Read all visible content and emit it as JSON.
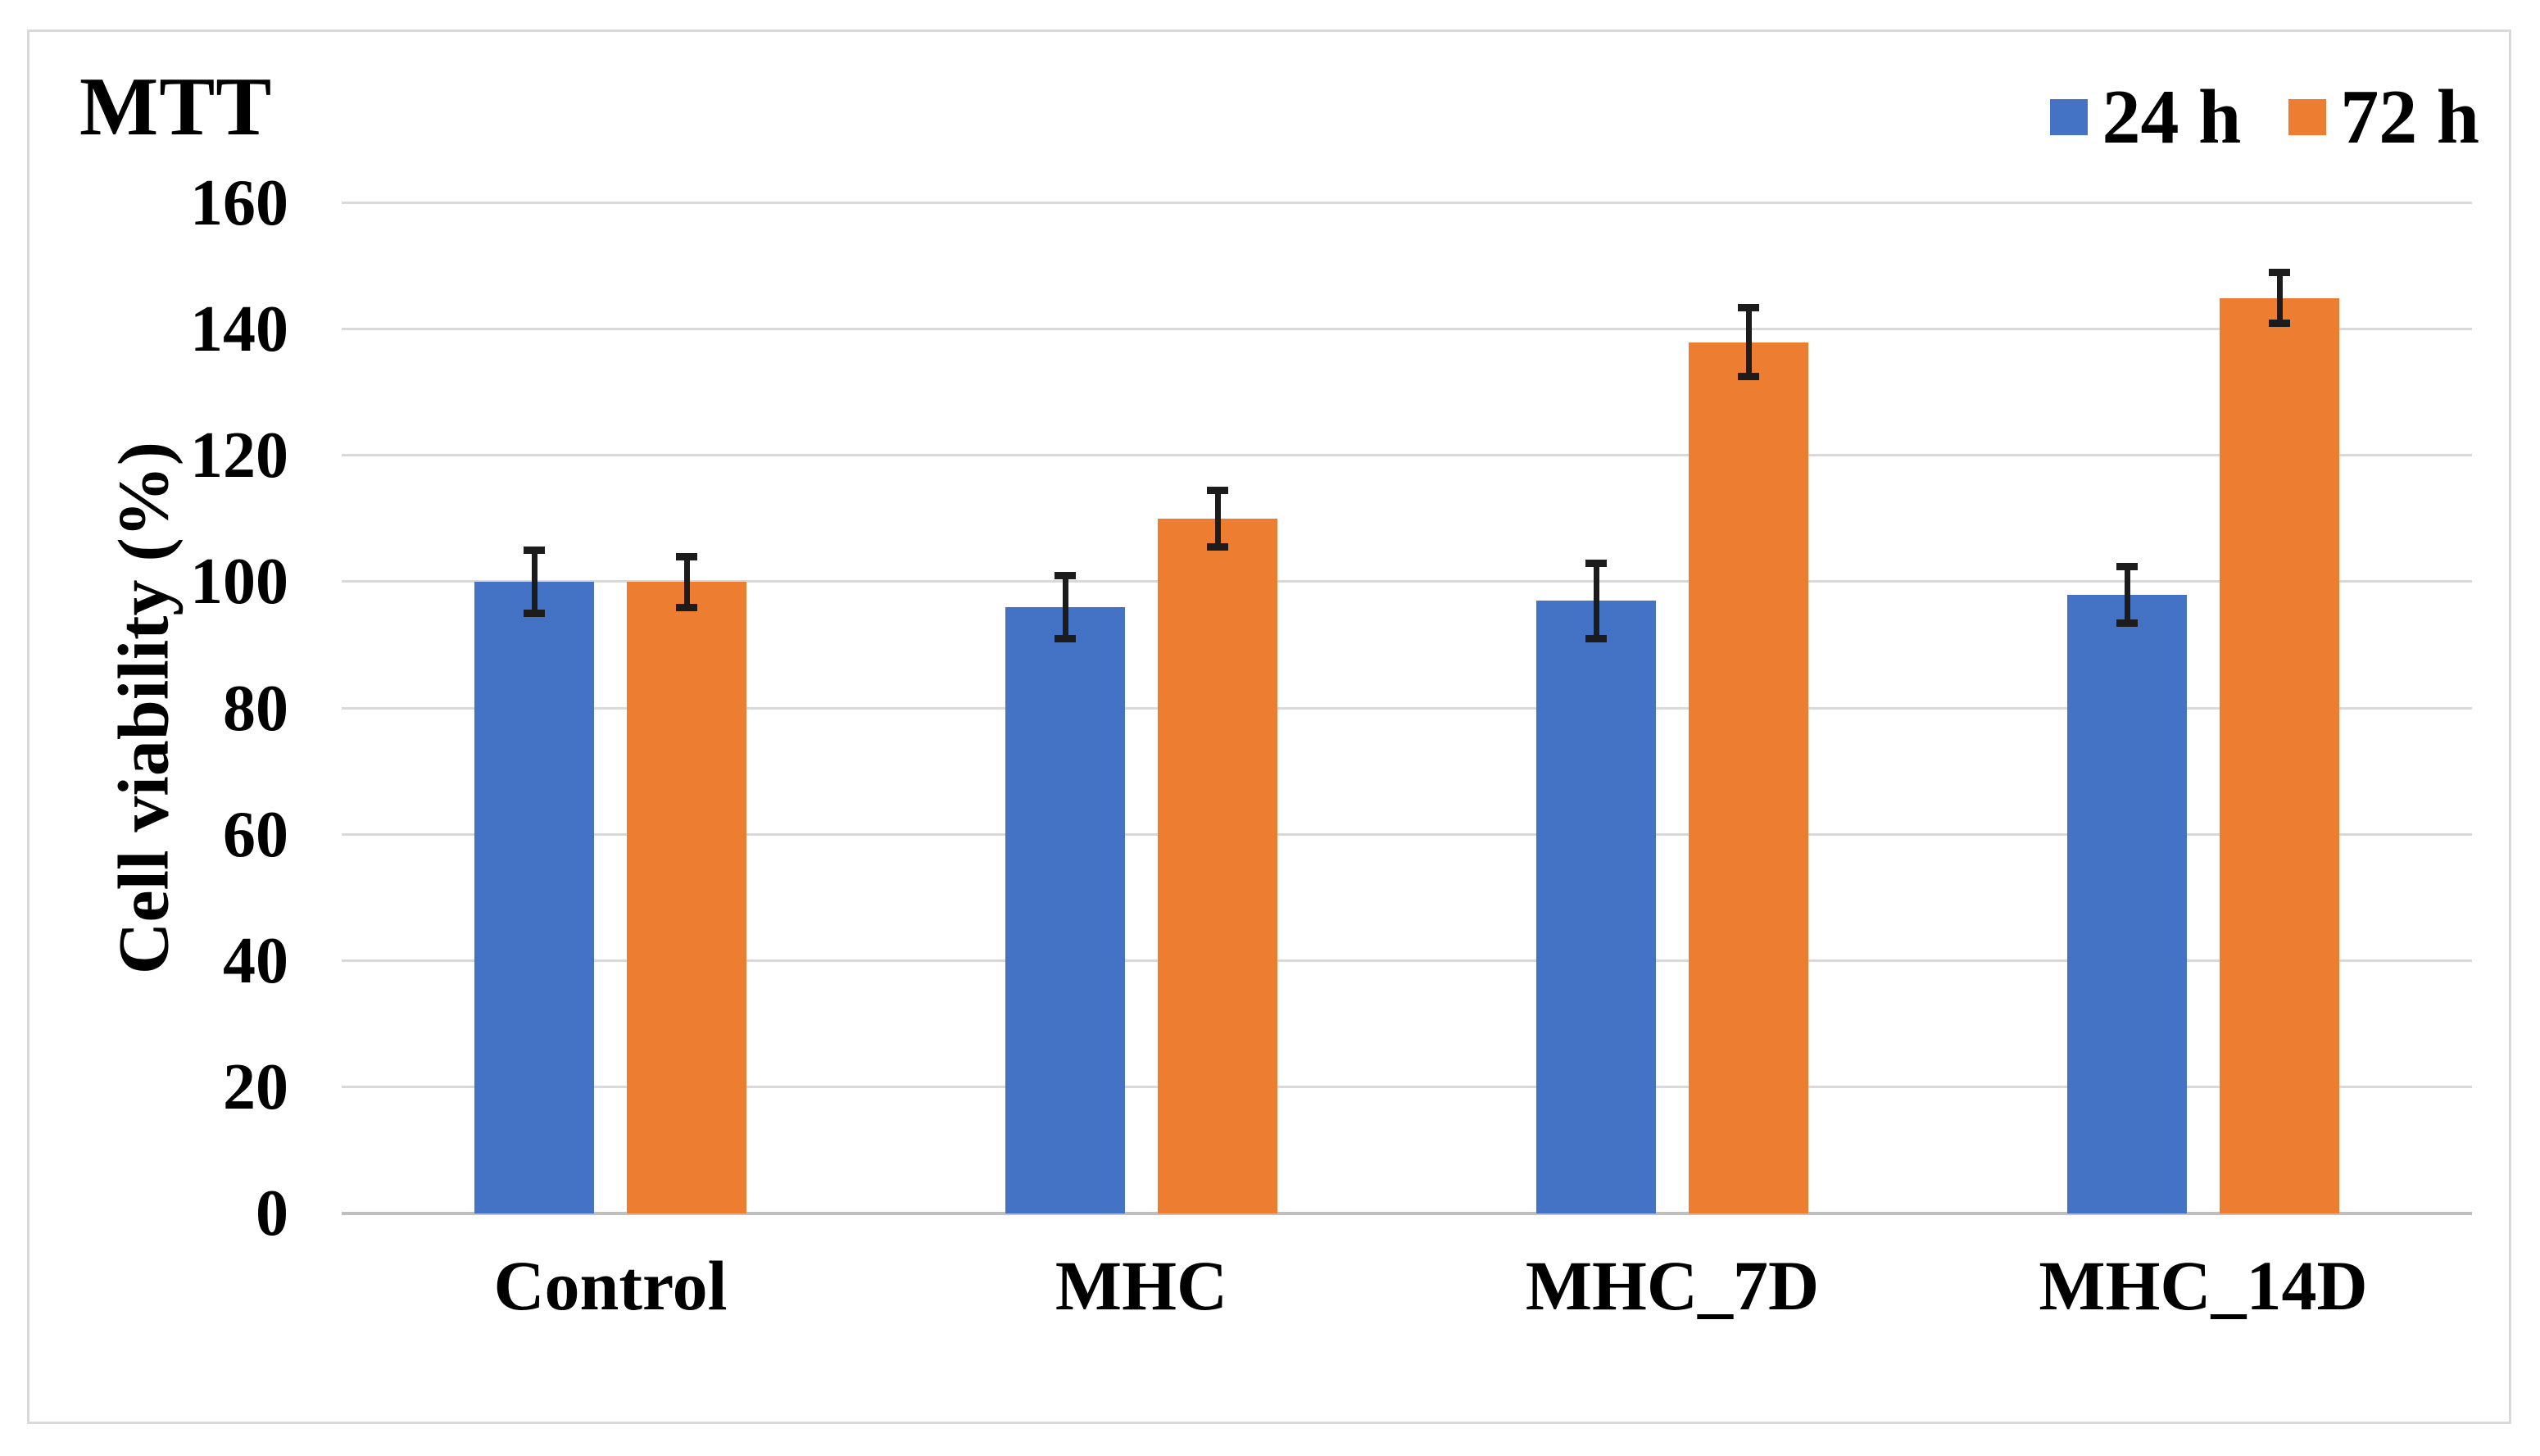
{
  "chart": {
    "title": "MTT",
    "y_axis_title": "Cell viability (%)"
  },
  "legend": {
    "items": [
      {
        "label": "24 h",
        "color": "#4472C4"
      },
      {
        "label": "72 h",
        "color": "#ED7D31"
      }
    ]
  },
  "colors": {
    "series_24h": "#4472C4",
    "series_72h": "#ED7D31",
    "gridline": "#D9D9D9",
    "axis_line": "#BFBFBF",
    "error_bar": "#1C1C1C",
    "frame_border": "#D9D9D9",
    "text": "#000000",
    "background": "#FFFFFF"
  },
  "chart_data": {
    "type": "bar",
    "title": "MTT",
    "categories": [
      "Control",
      "MHC",
      "MHC_7D",
      "MHC_14D"
    ],
    "series": [
      {
        "name": "24 h",
        "color": "#4472C4",
        "values": [
          100,
          96,
          97,
          98
        ],
        "errors": [
          5,
          5,
          6,
          4.5
        ]
      },
      {
        "name": "72 h",
        "color": "#ED7D31",
        "values": [
          100,
          110,
          138,
          145
        ],
        "errors": [
          4,
          4.5,
          5.5,
          4
        ]
      }
    ],
    "xlabel": "",
    "ylabel": "Cell viability (%)",
    "ylim": [
      0,
      160
    ],
    "yticks": [
      0,
      20,
      40,
      60,
      80,
      100,
      120,
      140,
      160
    ],
    "grid": true,
    "error_bars": true,
    "legend_position": "top-right"
  }
}
